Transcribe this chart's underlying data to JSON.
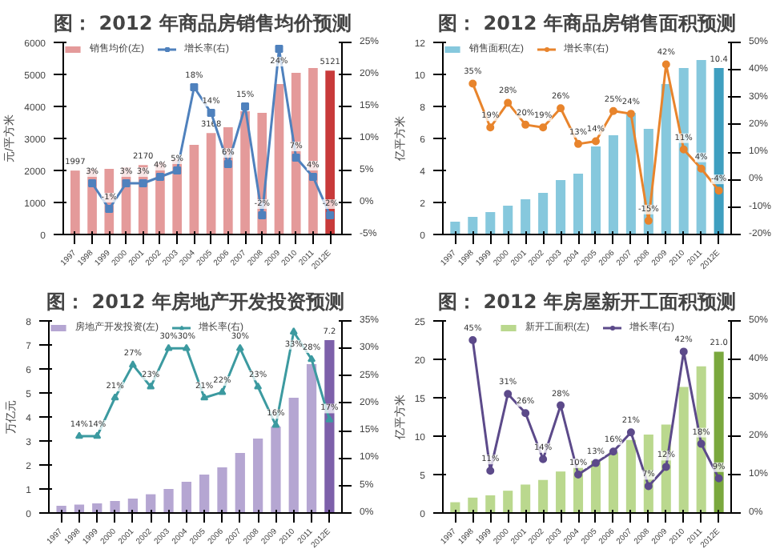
{
  "chart_data": [
    {
      "type": "bar",
      "title": "图： 2012 年商品房销售均价预测",
      "ylabel": "元/平方米",
      "categories": [
        "1997",
        "1998",
        "1999",
        "2000",
        "2001",
        "2002",
        "2003",
        "2004",
        "2005",
        "2006",
        "2007",
        "2008",
        "2009",
        "2010",
        "2011",
        "2012E"
      ],
      "ylim": [
        0,
        6000
      ],
      "yticks": [
        0,
        1000,
        2000,
        3000,
        4000,
        5000,
        6000
      ],
      "y2lim": [
        -5,
        25
      ],
      "y2ticks": [
        {
          "value": -5,
          "label": "-5%"
        },
        {
          "value": 0,
          "label": "0%"
        },
        {
          "value": 5,
          "label": "5%"
        },
        {
          "value": 10,
          "label": "10%"
        },
        {
          "value": 15,
          "label": "15%"
        },
        {
          "value": 20,
          "label": "20%"
        },
        {
          "value": 25,
          "label": "25%"
        }
      ],
      "legend": "top left",
      "series": [
        {
          "name": "销售均价(左)",
          "colors": [
            "#e49a9a",
            "#e49a9a",
            "#e49a9a",
            "#e49a9a",
            "#e49a9a",
            "#e49a9a",
            "#e49a9a",
            "#e49a9a",
            "#e49a9a",
            "#e49a9a",
            "#e49a9a",
            "#e49a9a",
            "#e49a9a",
            "#e49a9a",
            "#e49a9a",
            "#c83a3a"
          ],
          "values": [
            1997,
            2050,
            2050,
            2100,
            2170,
            2250,
            2350,
            2800,
            3168,
            3350,
            3850,
            3800,
            4700,
            5050,
            5200,
            5121
          ],
          "value_labels": [
            "1997",
            null,
            null,
            null,
            "2170",
            null,
            null,
            null,
            "3168",
            null,
            null,
            null,
            null,
            null,
            null,
            "5121"
          ]
        },
        {
          "name": "增长率(右)",
          "type": "line",
          "axis": "y2",
          "color": "#4f81bd",
          "marker": "square",
          "values": [
            null,
            3,
            -1,
            3,
            3,
            4,
            5,
            18,
            14,
            6,
            15,
            -2,
            24,
            7,
            4,
            -2
          ],
          "value_labels": [
            null,
            "3%",
            "-1%",
            "3%",
            "3%",
            "4%",
            "5%",
            "18%",
            "14%",
            "6%",
            "15%",
            "-2%",
            "24%",
            "7%",
            "4%",
            "-2%"
          ]
        }
      ]
    },
    {
      "type": "bar",
      "title": "图： 2012 年商品房销售面积预测",
      "ylabel": "亿平方米",
      "categories": [
        "1997",
        "1998",
        "1999",
        "2000",
        "2001",
        "2002",
        "2003",
        "2004",
        "2005",
        "2006",
        "2007",
        "2008",
        "2009",
        "2010",
        "2011",
        "2012E"
      ],
      "ylim": [
        0,
        12
      ],
      "yticks": [
        0,
        2,
        4,
        6,
        8,
        10,
        12
      ],
      "y2lim": [
        -20,
        50
      ],
      "y2ticks": [
        {
          "value": -20,
          "label": "-20%"
        },
        {
          "value": -10,
          "label": "-10%"
        },
        {
          "value": 0,
          "label": "0%"
        },
        {
          "value": 10,
          "label": "10%"
        },
        {
          "value": 20,
          "label": "20%"
        },
        {
          "value": 30,
          "label": "30%"
        },
        {
          "value": 40,
          "label": "40%"
        },
        {
          "value": 50,
          "label": "50%"
        }
      ],
      "legend": "top left",
      "series": [
        {
          "name": "销售面积(左)",
          "colors": [
            "#86c8dd",
            "#86c8dd",
            "#86c8dd",
            "#86c8dd",
            "#86c8dd",
            "#86c8dd",
            "#86c8dd",
            "#86c8dd",
            "#86c8dd",
            "#86c8dd",
            "#86c8dd",
            "#86c8dd",
            "#86c8dd",
            "#86c8dd",
            "#86c8dd",
            "#3f9fc0"
          ],
          "values": [
            0.8,
            1.1,
            1.4,
            1.8,
            2.2,
            2.6,
            3.4,
            3.8,
            5.5,
            6.2,
            7.6,
            6.6,
            9.4,
            10.4,
            10.9,
            10.4
          ],
          "value_labels": [
            null,
            null,
            null,
            null,
            null,
            null,
            null,
            null,
            null,
            null,
            null,
            null,
            null,
            null,
            null,
            "10.4"
          ]
        },
        {
          "name": "增长率(右)",
          "type": "line",
          "axis": "y2",
          "color": "#e8842c",
          "marker": "circle",
          "values": [
            null,
            35,
            19,
            28,
            20,
            19,
            26,
            13,
            14,
            25,
            24,
            -15,
            42,
            11,
            4,
            -4
          ],
          "value_labels": [
            null,
            "35%",
            "19%",
            "28%",
            "20%",
            "19%",
            "26%",
            "13%",
            "14%",
            "25%",
            "24%",
            "-15%",
            "42%",
            "11%",
            "4%",
            "-4%"
          ]
        }
      ]
    },
    {
      "type": "bar",
      "title": "图： 2012 年房地产开发投资预测",
      "ylabel": "万亿元",
      "categories": [
        "1997",
        "1998",
        "1999",
        "2000",
        "2001",
        "2002",
        "2003",
        "2004",
        "2005",
        "2006",
        "2007",
        "2008",
        "2009",
        "2010",
        "2011",
        "2012E"
      ],
      "ylim": [
        0,
        8
      ],
      "yticks": [
        0,
        1,
        2,
        3,
        4,
        5,
        6,
        7,
        8
      ],
      "y2lim": [
        0,
        35
      ],
      "y2ticks": [
        {
          "value": 0,
          "label": "0%"
        },
        {
          "value": 5,
          "label": "5%"
        },
        {
          "value": 10,
          "label": "10%"
        },
        {
          "value": 15,
          "label": "15%"
        },
        {
          "value": 20,
          "label": "20%"
        },
        {
          "value": 25,
          "label": "25%"
        },
        {
          "value": 30,
          "label": "30%"
        },
        {
          "value": 35,
          "label": "35%"
        }
      ],
      "legend": "top left",
      "series": [
        {
          "name": "房地产开发投资(左)",
          "colors": [
            "#b5a6d2",
            "#b5a6d2",
            "#b5a6d2",
            "#b5a6d2",
            "#b5a6d2",
            "#b5a6d2",
            "#b5a6d2",
            "#b5a6d2",
            "#b5a6d2",
            "#b5a6d2",
            "#b5a6d2",
            "#b5a6d2",
            "#b5a6d2",
            "#b5a6d2",
            "#b5a6d2",
            "#7d60aa"
          ],
          "values": [
            0.3,
            0.35,
            0.4,
            0.5,
            0.6,
            0.78,
            1.0,
            1.3,
            1.6,
            1.9,
            2.5,
            3.1,
            3.6,
            4.8,
            6.2,
            7.2
          ],
          "value_labels": [
            null,
            null,
            null,
            null,
            null,
            null,
            null,
            null,
            null,
            null,
            null,
            null,
            null,
            null,
            null,
            "7.2"
          ]
        },
        {
          "name": "增长率(右)",
          "type": "line",
          "axis": "y2",
          "color": "#3c9aa0",
          "marker": "triangle",
          "values": [
            null,
            14,
            14,
            21,
            27,
            23,
            30,
            30,
            21,
            22,
            30,
            23,
            16,
            33,
            28,
            17
          ],
          "value_labels": [
            null,
            "14%",
            "14%",
            "21%",
            "27%",
            "23%",
            "30%",
            "30%",
            "21%",
            "22%",
            "30%",
            "23%",
            "16%",
            "33%",
            "28%",
            "17%"
          ]
        }
      ]
    },
    {
      "type": "bar",
      "title": "图： 2012 年房屋新开工面积预测",
      "ylabel": "亿平方米",
      "categories": [
        "1997",
        "1998",
        "1999",
        "2000",
        "2001",
        "2002",
        "2003",
        "2004",
        "2005",
        "2006",
        "2007",
        "2008",
        "2009",
        "2010",
        "2011",
        "2012E"
      ],
      "ylim": [
        0,
        25
      ],
      "yticks": [
        0,
        5,
        10,
        15,
        20,
        25
      ],
      "y2lim": [
        0,
        50
      ],
      "y2ticks": [
        {
          "value": 0,
          "label": "0%"
        },
        {
          "value": 10,
          "label": "10%"
        },
        {
          "value": 20,
          "label": "20%"
        },
        {
          "value": 30,
          "label": "30%"
        },
        {
          "value": 40,
          "label": "40%"
        },
        {
          "value": 50,
          "label": "50%"
        }
      ],
      "legend": "top",
      "series": [
        {
          "name": "新开工面积(左)",
          "colors": [
            "#bad88e",
            "#bad88e",
            "#bad88e",
            "#bad88e",
            "#bad88e",
            "#bad88e",
            "#bad88e",
            "#bad88e",
            "#bad88e",
            "#bad88e",
            "#bad88e",
            "#bad88e",
            "#bad88e",
            "#bad88e",
            "#bad88e",
            "#7aa83e"
          ],
          "values": [
            1.4,
            2.0,
            2.3,
            2.9,
            3.7,
            4.3,
            5.4,
            6.0,
            6.8,
            7.9,
            9.5,
            10.2,
            11.5,
            16.4,
            19.1,
            21.0
          ],
          "value_labels": [
            null,
            null,
            null,
            null,
            null,
            null,
            null,
            null,
            null,
            null,
            null,
            null,
            null,
            null,
            null,
            "21.0"
          ]
        },
        {
          "name": "增长率(右)",
          "type": "line",
          "axis": "y2",
          "color": "#5c4a8a",
          "marker": "circle",
          "values": [
            null,
            45,
            11,
            31,
            26,
            14,
            28,
            10,
            13,
            16,
            21,
            7,
            12,
            42,
            18,
            9
          ],
          "value_labels": [
            null,
            "45%",
            "11%",
            "31%",
            "26%",
            "14%",
            "28%",
            "10%",
            "13%",
            "16%",
            "21%",
            "7%",
            "12%",
            "42%",
            "18%",
            "9%"
          ]
        }
      ]
    }
  ]
}
